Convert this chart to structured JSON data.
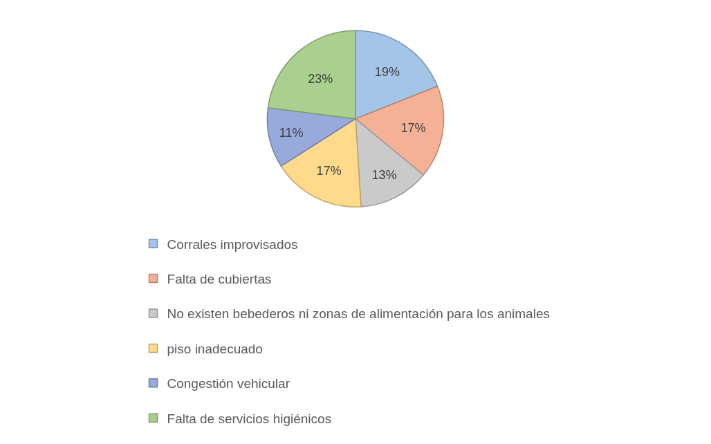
{
  "chart_data": {
    "type": "pie",
    "categories": [
      "Corrales improvisados",
      "Falta de cubiertas",
      "No existen bebederos ni zonas de alimentación para los animales",
      "piso inadecuado",
      "Congestión vehicular",
      "Falta de servicios higiénicos"
    ],
    "values": [
      19,
      17,
      13,
      17,
      11,
      23
    ],
    "colors": [
      "#a4c4e8",
      "#f5b196",
      "#cacaca",
      "#ffd98c",
      "#98a9dc",
      "#a9d08e"
    ],
    "value_labels": [
      "19%",
      "17%",
      "13%",
      "17%",
      "11%",
      "23%"
    ],
    "legend": "bottom"
  }
}
